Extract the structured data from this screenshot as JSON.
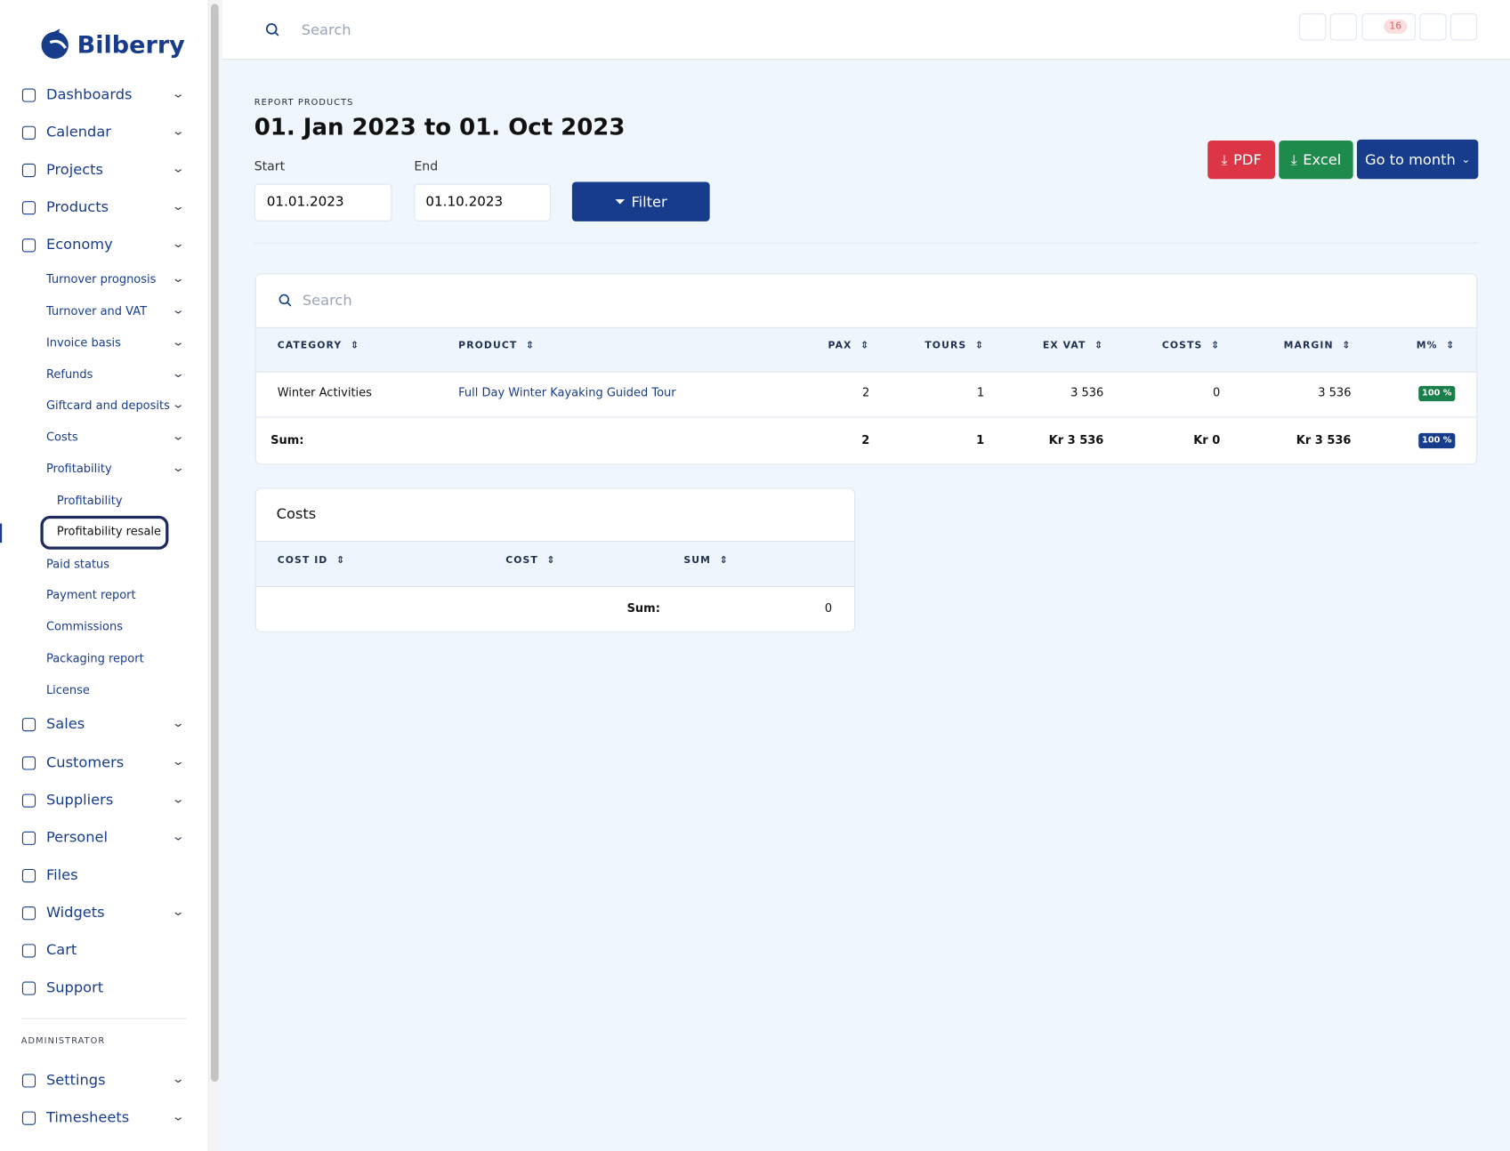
{
  "sidebar": {
    "brand": "Bilberry",
    "main_top": [
      "Dashboards",
      "Calendar",
      "Projects",
      "Products",
      "Economy"
    ],
    "sub_top": [
      "Turnover prognosis",
      "Turnover and VAT",
      "Invoice basis",
      "Refunds",
      "Giftcard and deposits",
      "Costs",
      "Profitability"
    ],
    "subsub": [
      "Profitability",
      "Profitability resale"
    ],
    "sub_bottom": [
      "Paid status",
      "Payment report",
      "Commissions",
      "Packaging report",
      "License"
    ],
    "main_bottom": [
      "Sales",
      "Customers",
      "Suppliers",
      "Personel",
      "Files",
      "Widgets",
      "Cart",
      "Support"
    ],
    "admin_heading": "ADMINISTRATOR",
    "admin": [
      "Settings",
      "Timesheets"
    ]
  },
  "header": {
    "search_placeholder": "Search",
    "badge": 16
  },
  "report": {
    "eyebrow": "REPORT PRODUCTS",
    "title": "01. Jan 2023 to 01. Oct 2023",
    "start_label": "Start",
    "start_value": "01.01.2023",
    "end_label": "End",
    "end_value": "01.10.2023",
    "filter": "Filter",
    "pdf": "PDF",
    "excel": "Excel",
    "goto": "Go to month"
  },
  "products_table": {
    "search_placeholder": "Search",
    "columns": [
      "CATEGORY",
      "PRODUCT",
      "PAX",
      "TOURS",
      "EX VAT",
      "COSTS",
      "MARGIN",
      "M%"
    ],
    "rows": [
      [
        "Winter Activities",
        "Full Day Winter Kayaking Guided Tour",
        2,
        1,
        "3 536",
        0,
        "3 536",
        "100 %"
      ]
    ],
    "sum": [
      "Sum:",
      2,
      1,
      "Kr 3 536",
      "Kr 0",
      "Kr 3 536",
      "100 %"
    ]
  },
  "costs_table": {
    "title": "Costs",
    "columns": [
      "COST ID",
      "COST",
      "SUM"
    ],
    "sum_label": "Sum:",
    "sum_value": 0
  }
}
